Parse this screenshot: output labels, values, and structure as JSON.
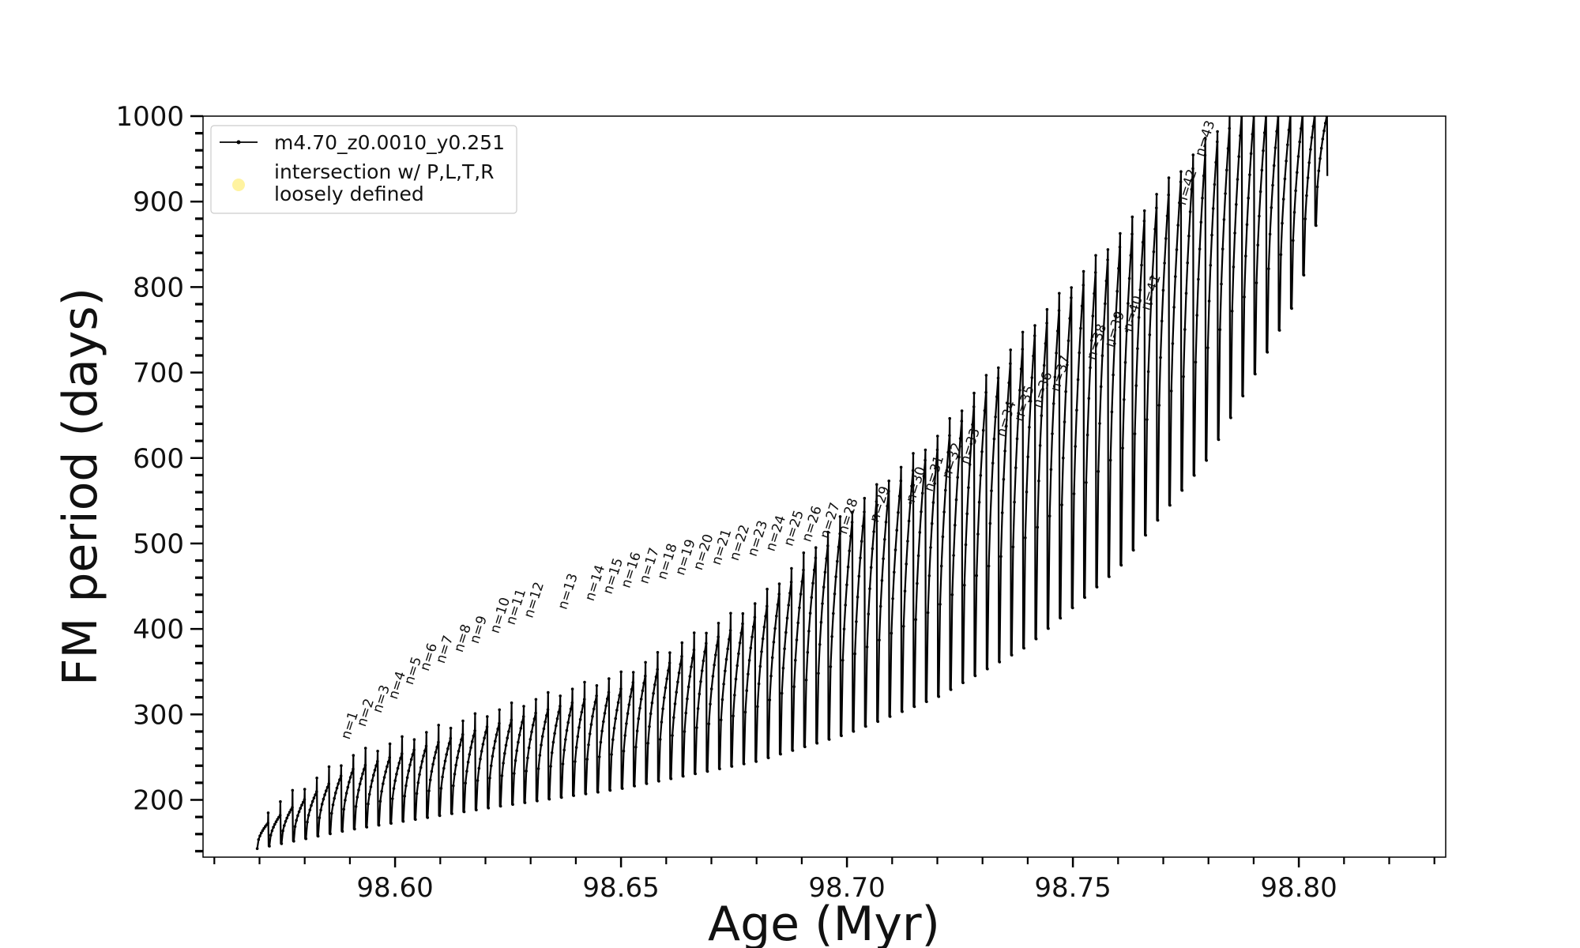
{
  "chart_data": {
    "type": "line",
    "xlabel": "Age (Myr)",
    "ylabel": "FM period (days)",
    "xlim": [
      98.5575,
      98.8325
    ],
    "ylim": [
      133,
      1000
    ],
    "x_ticks": [
      98.6,
      98.65,
      98.7,
      98.75,
      98.8
    ],
    "x_tick_labels": [
      "98.60",
      "98.65",
      "98.70",
      "98.75",
      "98.80"
    ],
    "y_ticks": [
      200,
      300,
      400,
      500,
      600,
      700,
      800,
      900,
      1000
    ],
    "y_tick_labels": [
      "200",
      "300",
      "400",
      "500",
      "600",
      "700",
      "800",
      "900",
      "1000"
    ],
    "grid": false,
    "legend_position": "top-left",
    "legend": [
      {
        "label": "m4.70_z0.0010_y0.251",
        "marker": "line-dot",
        "color": "#000000"
      },
      {
        "label": "intersection w/ P,L,T,R\nloosely defined",
        "marker": "circle",
        "color": "#fff3a0"
      }
    ],
    "series": [
      {
        "name": "m4.70_z0.0010_y0.251",
        "note_shape": "sawtooth: each cycle rises from a trough to a crest then spikes upward before dropping",
        "age_start": 98.5695,
        "age_end": 98.8065,
        "cycle_count": 88,
        "trough_envelope": {
          "x": [
            98.5695,
            98.59,
            98.62,
            98.65,
            98.68,
            98.7,
            98.72,
            98.74,
            98.76,
            98.78,
            98.8,
            98.8065
          ],
          "y": [
            143,
            165,
            190,
            213,
            245,
            277,
            320,
            380,
            470,
            600,
            790,
            930
          ]
        },
        "crest_envelope": {
          "x": [
            98.5695,
            98.59,
            98.62,
            98.65,
            98.68,
            98.7,
            98.72,
            98.74,
            98.76,
            98.775,
            98.787,
            98.8065
          ],
          "y": [
            165,
            235,
            285,
            330,
            415,
            520,
            610,
            735,
            845,
            930,
            1000,
            1000
          ]
        }
      }
    ],
    "annotations": [
      {
        "text": "n=1",
        "x": 98.589,
        "y": 268
      },
      {
        "text": "n=2",
        "x": 98.5925,
        "y": 283
      },
      {
        "text": "n=3",
        "x": 98.596,
        "y": 299
      },
      {
        "text": "n=4",
        "x": 98.5995,
        "y": 315
      },
      {
        "text": "n=5",
        "x": 98.603,
        "y": 332
      },
      {
        "text": "n=6",
        "x": 98.6065,
        "y": 348
      },
      {
        "text": "n=7",
        "x": 98.61,
        "y": 357
      },
      {
        "text": "n=8",
        "x": 98.614,
        "y": 370
      },
      {
        "text": "n=9",
        "x": 98.6175,
        "y": 380
      },
      {
        "text": "n=10",
        "x": 98.622,
        "y": 392
      },
      {
        "text": "n=11",
        "x": 98.6255,
        "y": 402
      },
      {
        "text": "n=12",
        "x": 98.6295,
        "y": 410
      },
      {
        "text": "n=13",
        "x": 98.637,
        "y": 420
      },
      {
        "text": "n=14",
        "x": 98.643,
        "y": 430
      },
      {
        "text": "n=15",
        "x": 98.647,
        "y": 438
      },
      {
        "text": "n=16",
        "x": 98.651,
        "y": 445
      },
      {
        "text": "n=17",
        "x": 98.655,
        "y": 450
      },
      {
        "text": "n=18",
        "x": 98.659,
        "y": 455
      },
      {
        "text": "n=19",
        "x": 98.663,
        "y": 460
      },
      {
        "text": "n=20",
        "x": 98.667,
        "y": 466
      },
      {
        "text": "n=21",
        "x": 98.671,
        "y": 472
      },
      {
        "text": "n=22",
        "x": 98.675,
        "y": 477
      },
      {
        "text": "n=23",
        "x": 98.679,
        "y": 482
      },
      {
        "text": "n=24",
        "x": 98.683,
        "y": 488
      },
      {
        "text": "n=25",
        "x": 98.687,
        "y": 494
      },
      {
        "text": "n=26",
        "x": 98.691,
        "y": 499
      },
      {
        "text": "n=27",
        "x": 98.695,
        "y": 503
      },
      {
        "text": "n=28",
        "x": 98.699,
        "y": 508
      },
      {
        "text": "n=29",
        "x": 98.706,
        "y": 522
      },
      {
        "text": "n=30",
        "x": 98.714,
        "y": 545
      },
      {
        "text": "n=31",
        "x": 98.718,
        "y": 558
      },
      {
        "text": "n=32",
        "x": 98.722,
        "y": 573
      },
      {
        "text": "n=33",
        "x": 98.726,
        "y": 590
      },
      {
        "text": "n=34",
        "x": 98.734,
        "y": 622
      },
      {
        "text": "n=35",
        "x": 98.738,
        "y": 640
      },
      {
        "text": "n=36",
        "x": 98.742,
        "y": 656
      },
      {
        "text": "n=37",
        "x": 98.746,
        "y": 675
      },
      {
        "text": "n=38",
        "x": 98.754,
        "y": 712
      },
      {
        "text": "n=39",
        "x": 98.758,
        "y": 727
      },
      {
        "text": "n=40",
        "x": 98.762,
        "y": 745
      },
      {
        "text": "n=41",
        "x": 98.766,
        "y": 770
      },
      {
        "text": "n=42",
        "x": 98.774,
        "y": 893
      },
      {
        "text": "n=43",
        "x": 98.778,
        "y": 950
      }
    ]
  }
}
